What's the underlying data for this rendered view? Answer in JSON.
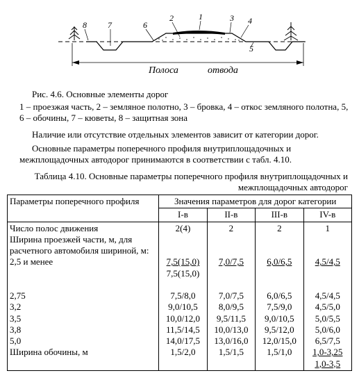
{
  "figure": {
    "labels": [
      "1",
      "2",
      "3",
      "4",
      "5",
      "6",
      "7",
      "8"
    ],
    "dim_left": "Полоса",
    "dim_right": "отвода"
  },
  "caption": "Рис. 4.6. Основные элементы дорог",
  "legend": "1 – проезжая часть, 2 – земляное полотно, 3 – бровка, 4 – откос земляного полотна, 5, 6 – обочины, 7 – кюветы, 8 – защитная зона",
  "para1": "Наличие или отсутствие отдельных элементов зависит от категории дорог.",
  "para2": "Основные параметры поперечного профиля внутриплощадочных и межплощадочных автодорог принимаются в соответствии с табл. 4.10.",
  "table_caption_a": "Таблица 4.10. Основные параметры поперечного профиля внутриплощадочных и",
  "table_caption_b": "межплощадочных автодорог",
  "header": {
    "params": "Параметры поперечного профиля",
    "values": "Значения параметров для дорог категории",
    "cols": [
      "I-в",
      "II-в",
      "III-в",
      "IV-в"
    ]
  },
  "param_rows": [
    "Число полос движения",
    "Ширина проезжей части, м, для расчетного автомобиля шириной, м:",
    "2,5 и менее",
    "",
    "",
    "2,75",
    "3,2",
    "3,5",
    "3,8",
    "5,0",
    "Ширина обочины, м",
    ""
  ],
  "value_rows": [
    [
      "2(4)",
      "2",
      "2",
      "1"
    ],
    [
      "",
      "",
      "",
      ""
    ],
    [
      "",
      "",
      "",
      ""
    ],
    [
      "7,5(15,0)",
      "7,0/7,5",
      "6,0/6,5",
      "4,5/4,5"
    ],
    [
      "7,5(15,0)",
      "",
      "",
      ""
    ],
    [
      "",
      "",
      "",
      ""
    ],
    [
      "7,5/8,0",
      "7,0/7,5",
      "6,0/6,5",
      "4,5/4,5"
    ],
    [
      "9,0/10,5",
      "8,0/9,5",
      "7,5/9,0",
      "4,5/5,0"
    ],
    [
      "10,0/12,0",
      "9,5/11,5",
      "9,0/10,5",
      "5,0/5,5"
    ],
    [
      "11,5/14,5",
      "10,0/13,0",
      "9,5/12,0",
      "5,0/6,0"
    ],
    [
      "14,0/17,5",
      "13,0/16,0",
      "12,0/15,0",
      "6,5/7,5"
    ],
    [
      "1,5/2,0",
      "1,5/1,5",
      "1,5/1,0",
      "1,0-3,25"
    ]
  ],
  "underline_cells": [
    [
      3,
      0
    ],
    [
      3,
      1
    ],
    [
      3,
      2
    ],
    [
      3,
      3
    ],
    [
      11,
      3
    ]
  ],
  "extra_last": "1,0-3,5"
}
